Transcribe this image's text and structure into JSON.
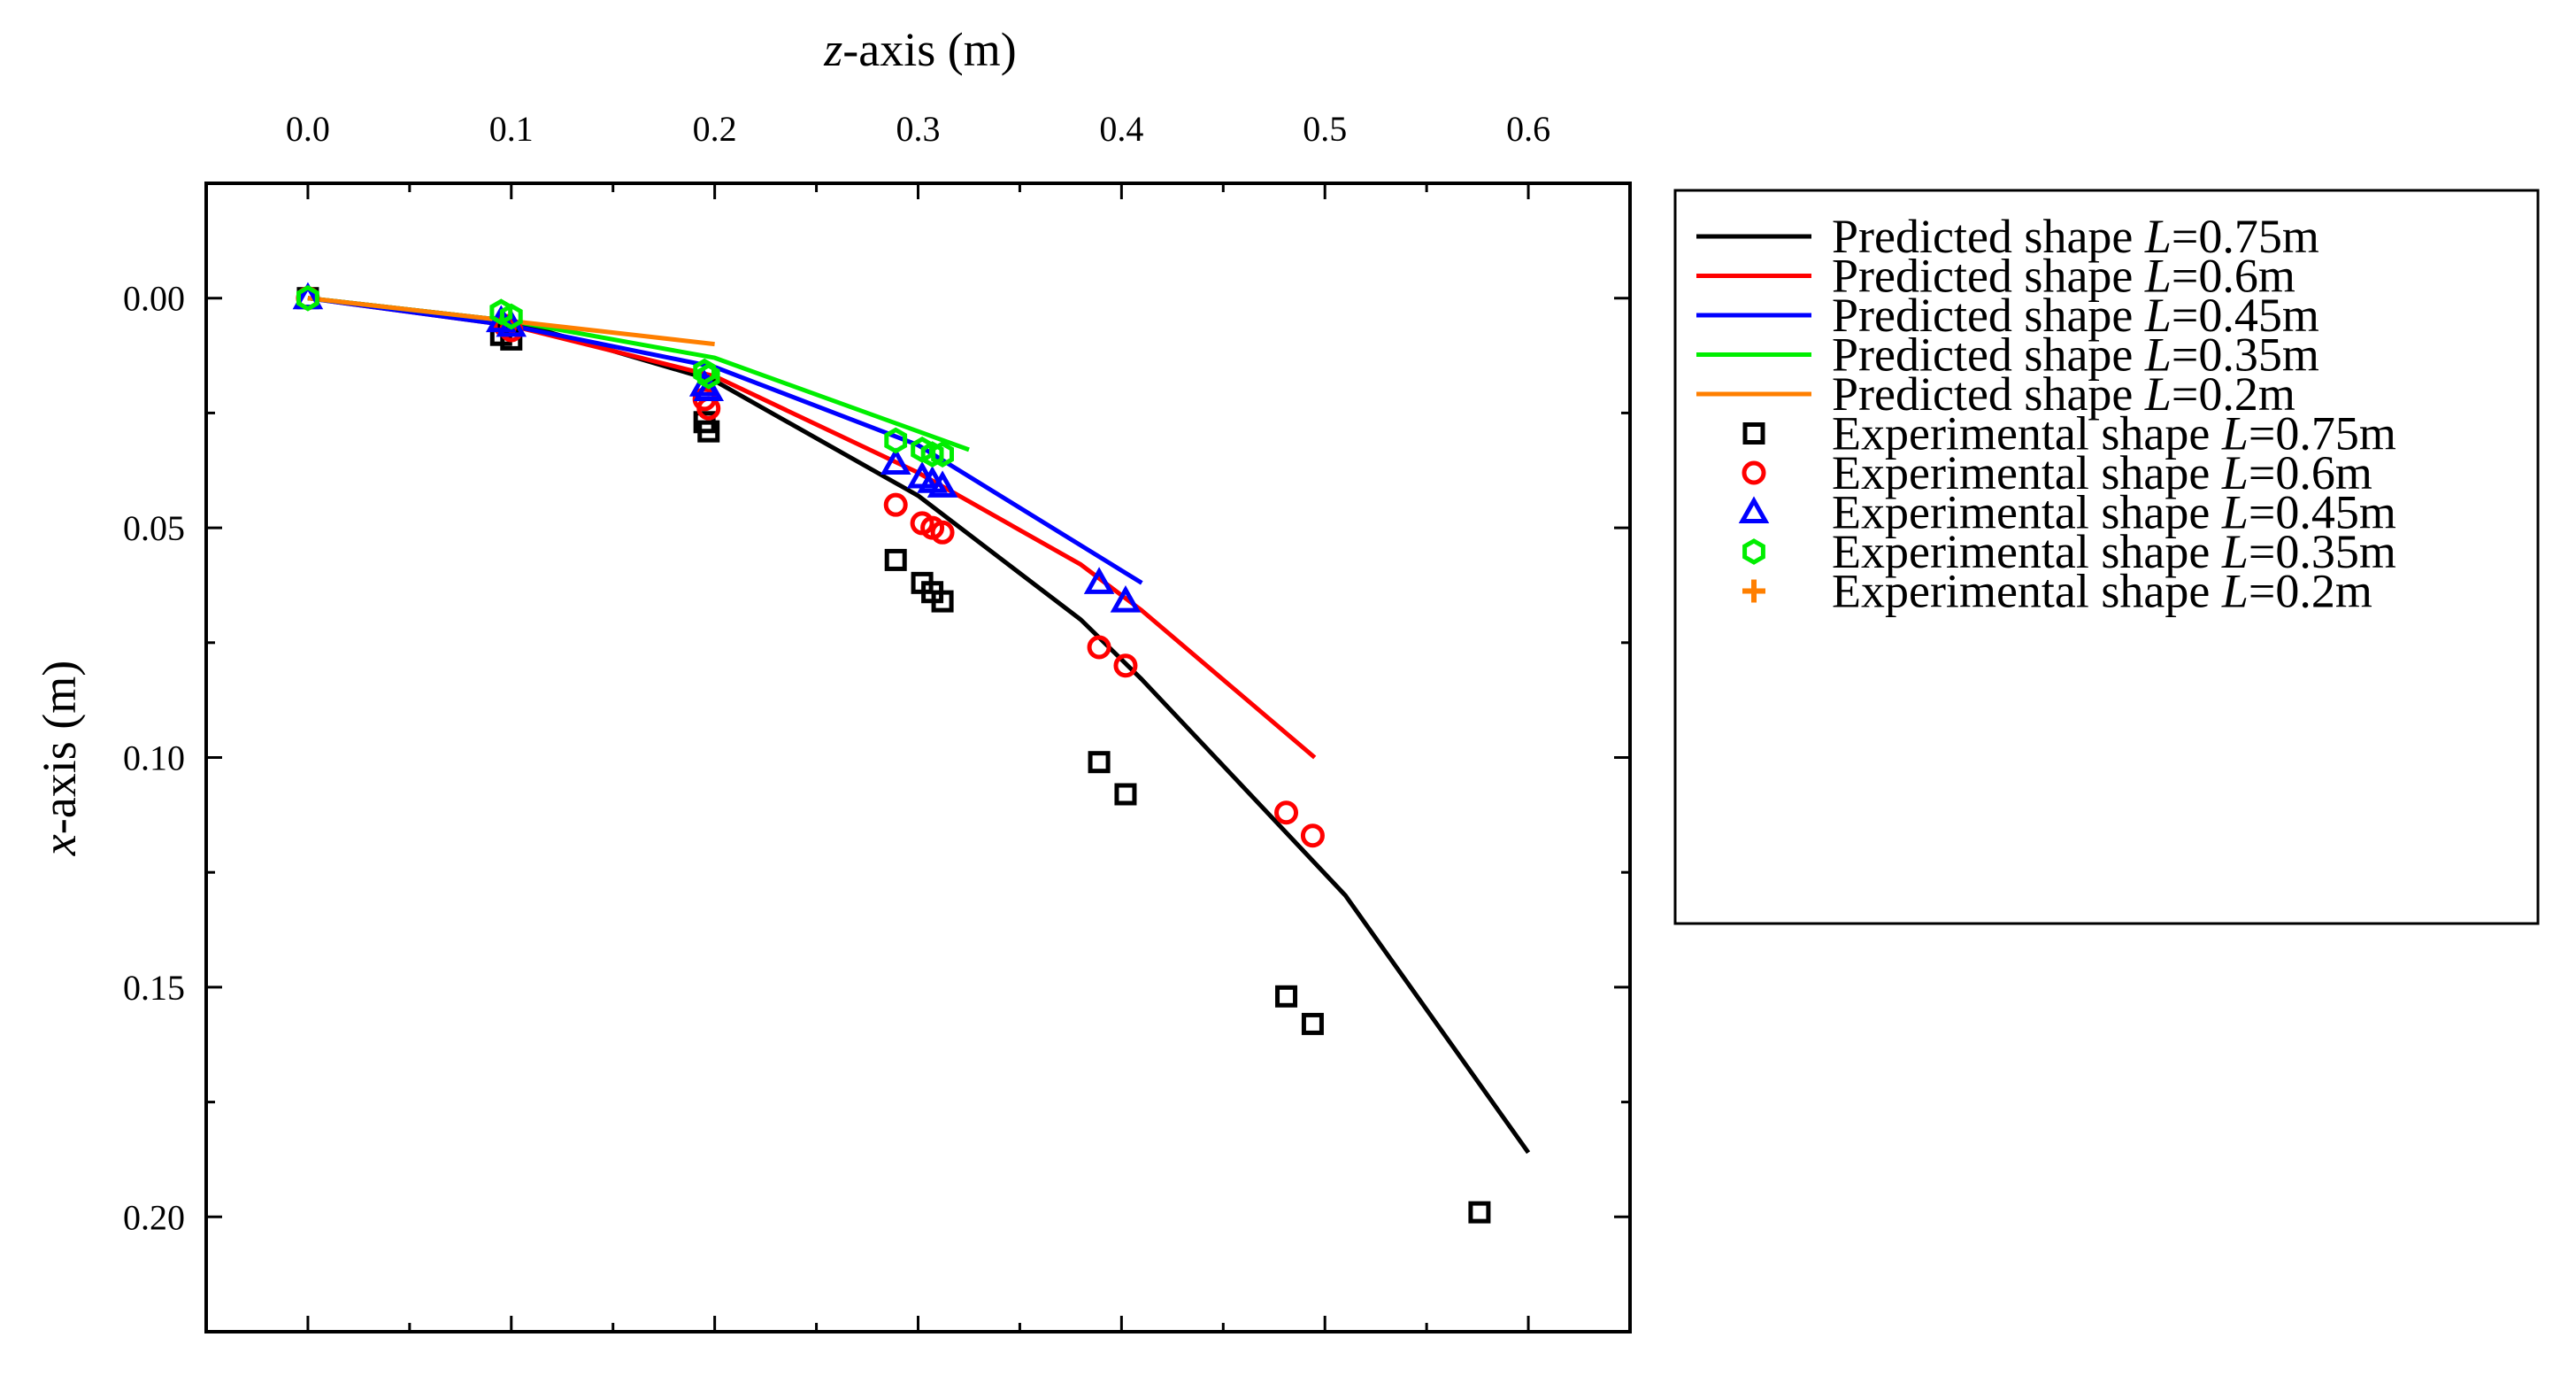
{
  "chart_data": {
    "type": "line+scatter",
    "xaxis": {
      "var": "z",
      "rest": "-axis (m)",
      "position": "top",
      "range": [
        -0.05,
        0.65
      ],
      "ticks": [
        0.0,
        0.1,
        0.2,
        0.3,
        0.4,
        0.5,
        0.6
      ],
      "tick_labels": [
        "0.0",
        "0.1",
        "0.2",
        "0.3",
        "0.4",
        "0.5",
        "0.6"
      ]
    },
    "yaxis": {
      "var": "x",
      "rest": "-axis (m)",
      "inverted": true,
      "range": [
        -0.025,
        0.225
      ],
      "ticks": [
        0.0,
        0.05,
        0.1,
        0.15,
        0.2
      ],
      "tick_labels": [
        "0.00",
        "0.05",
        "0.10",
        "0.15",
        "0.20"
      ]
    },
    "series": [
      {
        "name": "Predicted shape L=0.75m",
        "prefix": "Predicted shape ",
        "italic": "L",
        "suffix": "=0.75m",
        "kind": "line",
        "color": "#000000",
        "points": [
          [
            0,
            0
          ],
          [
            0.1,
            0.005
          ],
          [
            0.2,
            0.018
          ],
          [
            0.3,
            0.043
          ],
          [
            0.38,
            0.07
          ],
          [
            0.41,
            0.083
          ],
          [
            0.51,
            0.13
          ],
          [
            0.6,
            0.186
          ]
        ]
      },
      {
        "name": "Predicted shape L=0.6m",
        "prefix": "Predicted shape ",
        "italic": "L",
        "suffix": "=0.6m",
        "kind": "line",
        "color": "#ff0000",
        "points": [
          [
            0,
            0
          ],
          [
            0.1,
            0.006
          ],
          [
            0.2,
            0.017
          ],
          [
            0.3,
            0.038
          ],
          [
            0.38,
            0.058
          ],
          [
            0.41,
            0.068
          ],
          [
            0.495,
            0.1
          ]
        ]
      },
      {
        "name": "Predicted shape L=0.45m",
        "prefix": "Predicted shape ",
        "italic": "L",
        "suffix": "=0.45m",
        "kind": "line",
        "color": "#0000ff",
        "points": [
          [
            0,
            0
          ],
          [
            0.1,
            0.006
          ],
          [
            0.2,
            0.015
          ],
          [
            0.3,
            0.032
          ],
          [
            0.41,
            0.062
          ]
        ]
      },
      {
        "name": "Predicted shape L=0.35m",
        "prefix": "Predicted shape ",
        "italic": "L",
        "suffix": "=0.35m",
        "kind": "line",
        "color": "#00ee00",
        "points": [
          [
            0,
            0
          ],
          [
            0.1,
            0.005
          ],
          [
            0.2,
            0.013
          ],
          [
            0.325,
            0.033
          ]
        ]
      },
      {
        "name": "Predicted shape L=0.2m",
        "prefix": "Predicted shape ",
        "italic": "L",
        "suffix": "=0.2m",
        "kind": "line",
        "color": "#ff7f00",
        "points": [
          [
            0,
            0
          ],
          [
            0.1,
            0.005
          ],
          [
            0.2,
            0.01
          ]
        ]
      },
      {
        "name": "Experimental shape L=0.75m",
        "prefix": "Experimental shape ",
        "italic": "L",
        "suffix": "=0.75m",
        "kind": "marker",
        "marker": "square",
        "color": "#000000",
        "points": [
          [
            0,
            0
          ],
          [
            0.095,
            0.008
          ],
          [
            0.1,
            0.009
          ],
          [
            0.195,
            0.027
          ],
          [
            0.197,
            0.029
          ],
          [
            0.289,
            0.057
          ],
          [
            0.302,
            0.062
          ],
          [
            0.307,
            0.064
          ],
          [
            0.312,
            0.066
          ],
          [
            0.389,
            0.101
          ],
          [
            0.402,
            0.108
          ],
          [
            0.481,
            0.152
          ],
          [
            0.494,
            0.158
          ],
          [
            0.576,
            0.199
          ]
        ]
      },
      {
        "name": "Experimental shape L=0.6m",
        "prefix": "Experimental shape ",
        "italic": "L",
        "suffix": "=0.6m",
        "kind": "marker",
        "marker": "circle",
        "color": "#ff0000",
        "points": [
          [
            0,
            0
          ],
          [
            0.097,
            0.006
          ],
          [
            0.1,
            0.007
          ],
          [
            0.195,
            0.022
          ],
          [
            0.197,
            0.024
          ],
          [
            0.289,
            0.045
          ],
          [
            0.302,
            0.049
          ],
          [
            0.307,
            0.05
          ],
          [
            0.312,
            0.051
          ],
          [
            0.389,
            0.076
          ],
          [
            0.402,
            0.08
          ],
          [
            0.481,
            0.112
          ],
          [
            0.494,
            0.117
          ]
        ]
      },
      {
        "name": "Experimental shape L=0.45m",
        "prefix": "Experimental shape ",
        "italic": "L",
        "suffix": "=0.45m",
        "kind": "marker",
        "marker": "triangle",
        "color": "#0000ff",
        "points": [
          [
            0,
            0
          ],
          [
            0.095,
            0.005
          ],
          [
            0.1,
            0.006
          ],
          [
            0.195,
            0.019
          ],
          [
            0.197,
            0.02
          ],
          [
            0.289,
            0.036
          ],
          [
            0.302,
            0.039
          ],
          [
            0.307,
            0.04
          ],
          [
            0.312,
            0.041
          ],
          [
            0.389,
            0.062
          ],
          [
            0.402,
            0.066
          ]
        ]
      },
      {
        "name": "Experimental shape L=0.35m",
        "prefix": "Experimental shape ",
        "italic": "L",
        "suffix": "=0.35m",
        "kind": "marker",
        "marker": "hexagon",
        "color": "#00ee00",
        "points": [
          [
            0,
            0
          ],
          [
            0.095,
            0.003
          ],
          [
            0.1,
            0.004
          ],
          [
            0.195,
            0.016
          ],
          [
            0.197,
            0.017
          ],
          [
            0.289,
            0.031
          ],
          [
            0.302,
            0.033
          ],
          [
            0.307,
            0.034
          ],
          [
            0.312,
            0.034
          ]
        ]
      },
      {
        "name": "Experimental shape L=0.2m",
        "prefix": "Experimental shape ",
        "italic": "L",
        "suffix": "=0.2m",
        "kind": "marker",
        "marker": "plus",
        "color": "#ff7f00",
        "points": []
      }
    ]
  }
}
